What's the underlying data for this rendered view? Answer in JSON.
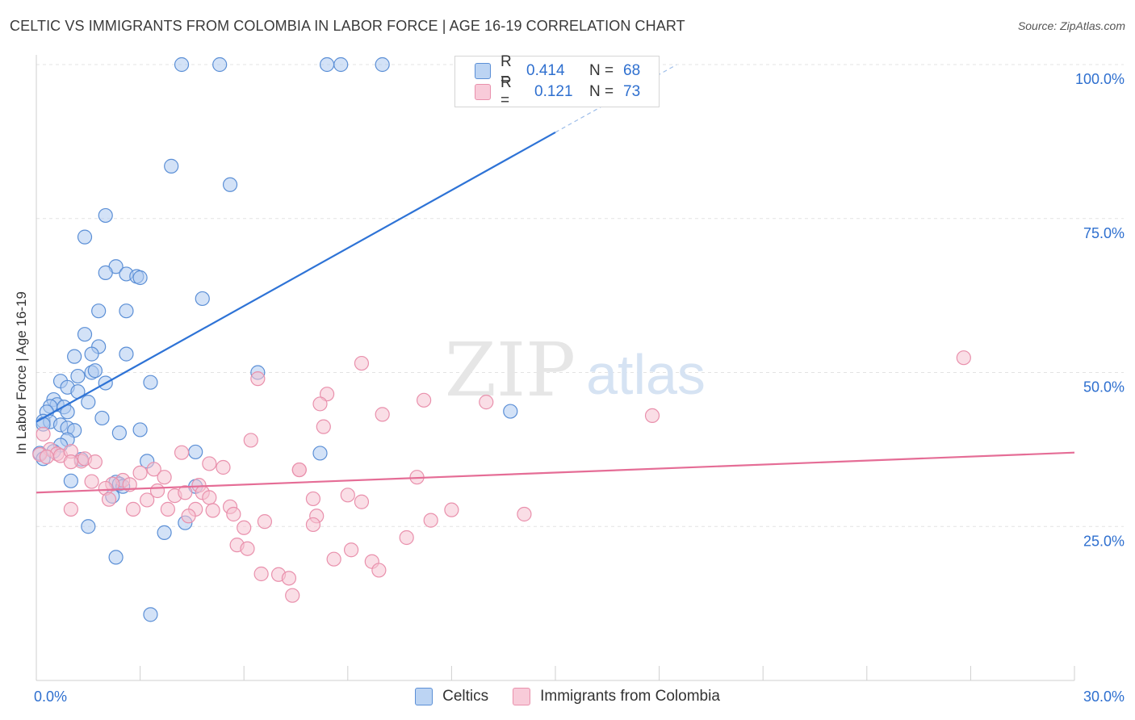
{
  "title": "CELTIC VS IMMIGRANTS FROM COLOMBIA IN LABOR FORCE | AGE 16-19 CORRELATION CHART",
  "source": "Source: ZipAtlas.com",
  "watermark": {
    "zip": "ZIP",
    "atlas": "atlas"
  },
  "legend": {
    "r_label": "R =",
    "n_label": "N =",
    "rows": [
      {
        "r": "0.414",
        "n": "68",
        "color": "#5b8fd6"
      },
      {
        "r": "0.121",
        "n": "73",
        "color": "#e990ac"
      }
    ]
  },
  "bottom_legend": [
    "Celtics",
    "Immigrants from Colombia"
  ],
  "chart_data": {
    "type": "scatter",
    "title": "CELTIC VS IMMIGRANTS FROM COLOMBIA IN LABOR FORCE | AGE 16-19 CORRELATION CHART",
    "xlabel": "",
    "ylabel": "In Labor Force | Age 16-19",
    "xlim": [
      0,
      30
    ],
    "ylim": [
      0,
      100
    ],
    "x_tick_labels": [
      "0.0%",
      "30.0%"
    ],
    "y_tick_labels": [
      "100.0%",
      "75.0%",
      "50.0%",
      "25.0%"
    ],
    "y_ticks": [
      100,
      75,
      50,
      25
    ],
    "grid": true,
    "series": [
      {
        "name": "Celtics",
        "color": "#5b8fd6",
        "fill": "#aecbf0",
        "R": 0.414,
        "N": 68,
        "trend": {
          "x0": 0,
          "y0": 42.0,
          "x1": 15,
          "y1": 89.0,
          "dash_from": 15,
          "dash_to": 18.5
        },
        "points": [
          [
            4.2,
            100
          ],
          [
            5.3,
            100
          ],
          [
            8.4,
            100
          ],
          [
            8.8,
            100
          ],
          [
            10.0,
            100
          ],
          [
            3.9,
            83.5
          ],
          [
            5.6,
            80.5
          ],
          [
            2.0,
            75.5
          ],
          [
            1.4,
            72.0
          ],
          [
            2.3,
            67.2
          ],
          [
            2.0,
            66.2
          ],
          [
            2.6,
            66.0
          ],
          [
            2.9,
            65.6
          ],
          [
            3.0,
            65.4
          ],
          [
            4.8,
            62.0
          ],
          [
            1.8,
            60.0
          ],
          [
            2.6,
            60.0
          ],
          [
            1.4,
            56.2
          ],
          [
            1.8,
            54.2
          ],
          [
            1.6,
            53.0
          ],
          [
            1.1,
            52.6
          ],
          [
            2.6,
            53.0
          ],
          [
            1.6,
            50.0
          ],
          [
            1.7,
            50.3
          ],
          [
            1.2,
            49.4
          ],
          [
            6.4,
            50.0
          ],
          [
            0.7,
            48.6
          ],
          [
            2.0,
            48.3
          ],
          [
            3.3,
            48.4
          ],
          [
            0.9,
            47.6
          ],
          [
            1.2,
            46.9
          ],
          [
            0.5,
            45.6
          ],
          [
            0.6,
            44.8
          ],
          [
            0.4,
            44.5
          ],
          [
            0.8,
            44.4
          ],
          [
            1.5,
            45.2
          ],
          [
            0.9,
            43.6
          ],
          [
            0.3,
            43.6
          ],
          [
            1.9,
            42.6
          ],
          [
            0.2,
            42.1
          ],
          [
            0.4,
            42.0
          ],
          [
            0.7,
            41.5
          ],
          [
            0.9,
            41.0
          ],
          [
            0.2,
            41.6
          ],
          [
            1.1,
            40.6
          ],
          [
            2.4,
            40.2
          ],
          [
            3.0,
            40.7
          ],
          [
            0.9,
            39.1
          ],
          [
            0.7,
            38.2
          ],
          [
            0.1,
            36.9
          ],
          [
            0.2,
            36.0
          ],
          [
            4.6,
            37.1
          ],
          [
            8.2,
            36.9
          ],
          [
            1.3,
            35.9
          ],
          [
            3.2,
            35.6
          ],
          [
            13.7,
            43.7
          ],
          [
            1.0,
            32.4
          ],
          [
            2.3,
            32.2
          ],
          [
            2.4,
            31.9
          ],
          [
            4.6,
            31.5
          ],
          [
            2.2,
            29.9
          ],
          [
            1.5,
            25.0
          ],
          [
            4.3,
            25.6
          ],
          [
            3.7,
            24.0
          ],
          [
            2.3,
            20.0
          ],
          [
            3.3,
            10.7
          ],
          [
            2.5,
            31.5
          ],
          [
            0.5,
            37.2
          ]
        ]
      },
      {
        "name": "Immigrants from Colombia",
        "color": "#e990ac",
        "fill": "#f5c2d2",
        "R": 0.121,
        "N": 73,
        "trend": {
          "x0": 0,
          "y0": 30.5,
          "x1": 30,
          "y1": 37.0
        },
        "points": [
          [
            26.8,
            52.4
          ],
          [
            9.4,
            51.5
          ],
          [
            11.2,
            45.5
          ],
          [
            13.0,
            45.2
          ],
          [
            8.4,
            46.5
          ],
          [
            8.2,
            44.9
          ],
          [
            10.0,
            43.2
          ],
          [
            17.8,
            43.0
          ],
          [
            6.4,
            49.0
          ],
          [
            8.3,
            41.2
          ],
          [
            6.2,
            39.0
          ],
          [
            0.2,
            40.0
          ],
          [
            0.4,
            37.5
          ],
          [
            0.6,
            36.8
          ],
          [
            0.7,
            36.5
          ],
          [
            1.0,
            37.2
          ],
          [
            0.1,
            36.7
          ],
          [
            0.3,
            36.3
          ],
          [
            1.3,
            35.6
          ],
          [
            1.4,
            36.0
          ],
          [
            1.7,
            35.5
          ],
          [
            1.0,
            35.5
          ],
          [
            4.2,
            37.0
          ],
          [
            5.0,
            35.2
          ],
          [
            5.4,
            34.6
          ],
          [
            3.4,
            34.3
          ],
          [
            3.0,
            33.7
          ],
          [
            7.6,
            34.2
          ],
          [
            2.5,
            32.5
          ],
          [
            3.7,
            33.0
          ],
          [
            2.2,
            31.9
          ],
          [
            2.7,
            31.8
          ],
          [
            1.6,
            32.3
          ],
          [
            2.0,
            31.2
          ],
          [
            3.5,
            30.8
          ],
          [
            4.0,
            30.0
          ],
          [
            4.3,
            30.5
          ],
          [
            4.7,
            31.7
          ],
          [
            4.8,
            30.5
          ],
          [
            5.0,
            29.7
          ],
          [
            5.6,
            28.2
          ],
          [
            7.6,
            34.2
          ],
          [
            8.0,
            29.5
          ],
          [
            9.0,
            30.1
          ],
          [
            9.4,
            29.0
          ],
          [
            11.0,
            33.0
          ],
          [
            12.0,
            27.7
          ],
          [
            14.1,
            27.0
          ],
          [
            2.1,
            29.4
          ],
          [
            3.2,
            29.3
          ],
          [
            3.8,
            27.8
          ],
          [
            4.6,
            27.8
          ],
          [
            1.0,
            27.8
          ],
          [
            2.8,
            27.8
          ],
          [
            5.1,
            27.6
          ],
          [
            5.7,
            27.0
          ],
          [
            6.6,
            25.8
          ],
          [
            8.1,
            26.7
          ],
          [
            11.4,
            26.0
          ],
          [
            6.0,
            24.8
          ],
          [
            8.0,
            25.3
          ],
          [
            10.7,
            23.2
          ],
          [
            5.8,
            22.0
          ],
          [
            6.1,
            21.4
          ],
          [
            9.1,
            21.2
          ],
          [
            8.6,
            19.7
          ],
          [
            9.7,
            19.3
          ],
          [
            9.9,
            17.9
          ],
          [
            6.5,
            17.3
          ],
          [
            7.0,
            17.2
          ],
          [
            7.3,
            16.6
          ],
          [
            7.4,
            13.8
          ],
          [
            4.4,
            26.7
          ]
        ]
      }
    ]
  }
}
